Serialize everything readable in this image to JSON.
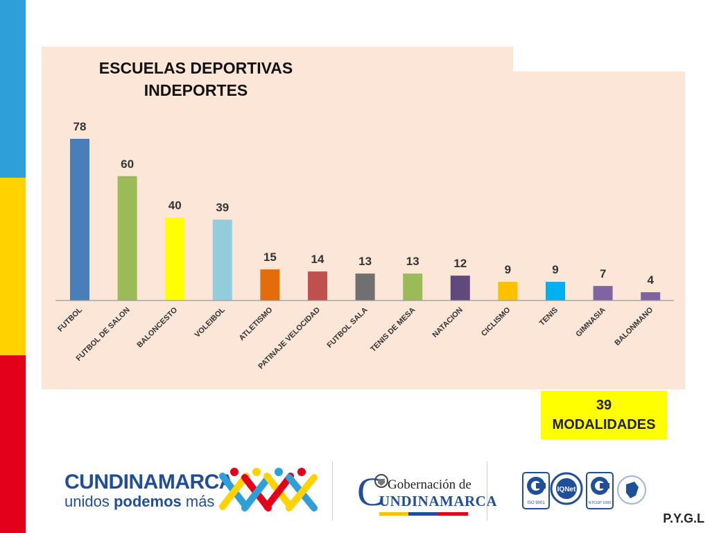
{
  "chart_data": {
    "type": "bar",
    "title_lines": [
      "ESCUELAS DEPORTIVAS",
      "INDEPORTES"
    ],
    "categories": [
      "FUTBOL",
      "FUTBOL DE SALON",
      "BALONCESTO",
      "VOLEIBOL",
      "ATLETISMO",
      "PATINAJE VELOCIDAD",
      "FUTBOL SALA",
      "TENIS DE MESA",
      "NATACION",
      "CICLISMO",
      "TENIS",
      "GIMNASIA",
      "BALONMANO"
    ],
    "values": [
      78,
      60,
      40,
      39,
      15,
      14,
      13,
      13,
      12,
      9,
      9,
      7,
      4
    ],
    "colors": [
      "#4a7ebb",
      "#9bbb59",
      "#ffff00",
      "#92cddc",
      "#e46c0a",
      "#c0504d",
      "#707070",
      "#9bbb59",
      "#604a7b",
      "#ffc000",
      "#00b0f0",
      "#8064a2",
      "#8064a2"
    ],
    "ylim": [
      0,
      80
    ],
    "grid": false,
    "legend": false,
    "data_labels": true
  },
  "summary": {
    "count": "39",
    "label": "MODALIDADES"
  },
  "footer": {
    "cund_title": "CUNDINAMARCA",
    "cund_sub_1": "unidos ",
    "cund_sub_bold": "podemos",
    "cund_sub_2": " más",
    "gob_line1": "Gobernación de",
    "gob_C": "C",
    "gob_line2": "UNDINAMARCA",
    "cert_labels": [
      "ISO 9001",
      "IQNet",
      "NTCGP 1000"
    ],
    "pygl": "P.Y.G.L"
  },
  "colors": {
    "blue": "#2e9fd9",
    "yellow": "#ffd200",
    "red": "#e2001a",
    "panel": "#fbe6d7",
    "accent_box": "#ffff00"
  }
}
